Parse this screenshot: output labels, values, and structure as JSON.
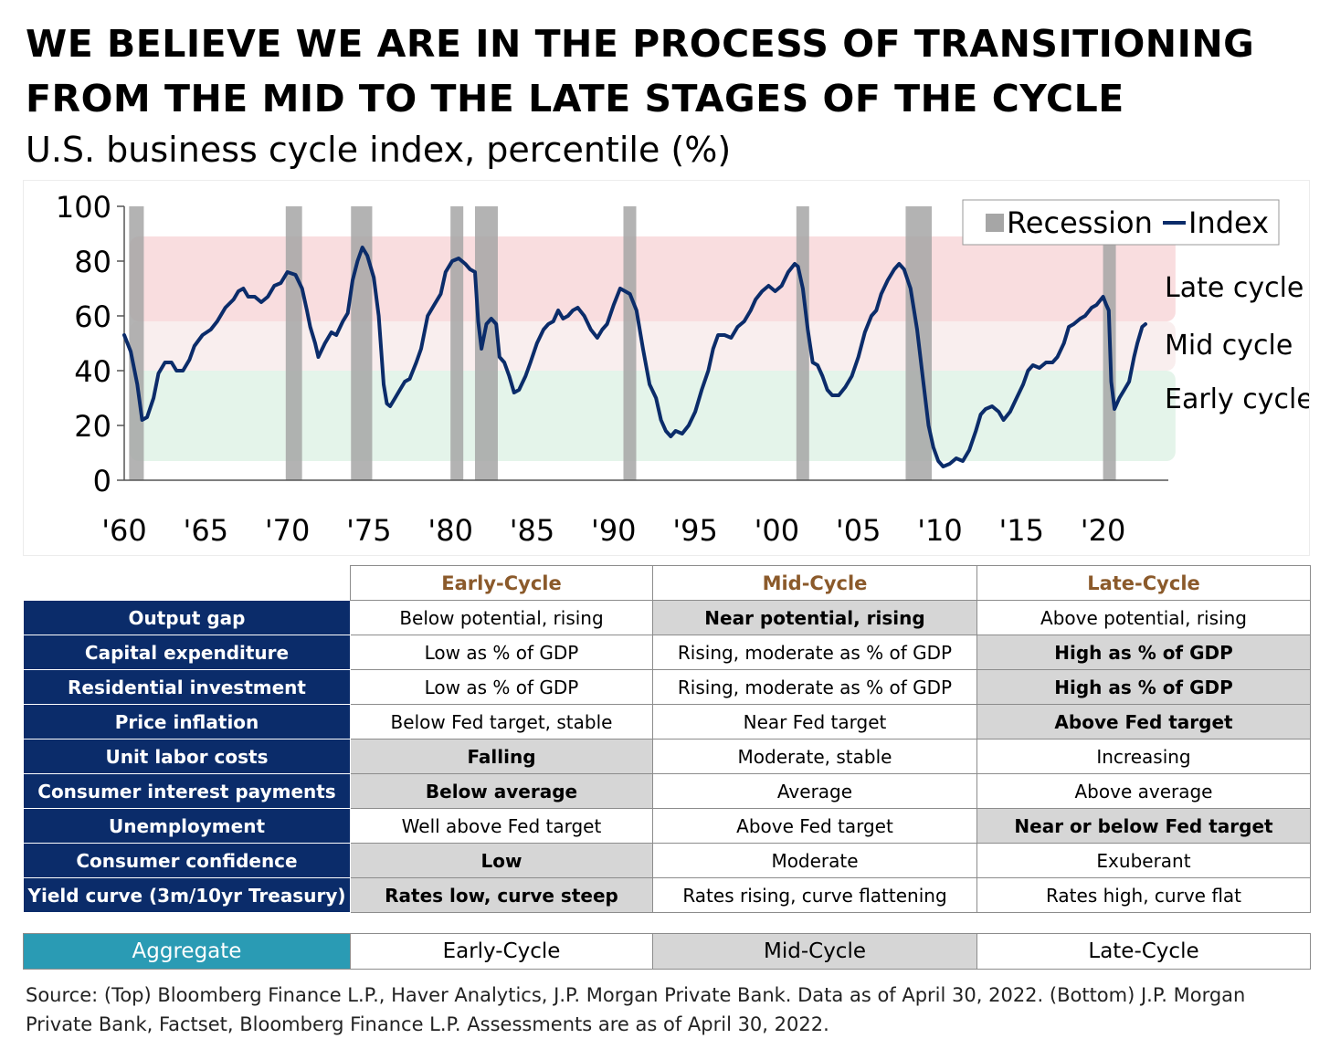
{
  "header": {
    "title": "WE BELIEVE WE ARE IN THE PROCESS OF TRANSITIONING FROM THE MID TO THE LATE STAGES OF THE CYCLE",
    "subtitle": "U.S. business cycle index, percentile (%)"
  },
  "colors": {
    "index_line": "#0b2c6a",
    "recession": "#a6a6a6",
    "late_band": "#f9dddf",
    "mid_band": "#f9eeee",
    "early_band": "#e4f4ea",
    "row_label_bg": "#0b2c6a",
    "aggregate_bg": "#2a9bb4",
    "highlight_bg": "#d6d6d6",
    "header_text": "#8b5a2b"
  },
  "chart_data": {
    "type": "line",
    "ylim": [
      0,
      100
    ],
    "xlim": [
      1960,
      2024
    ],
    "y_ticks": [
      0,
      20,
      40,
      60,
      80,
      100
    ],
    "x_ticks": [
      {
        "value": 1960,
        "label": "'60"
      },
      {
        "value": 1965,
        "label": "'65"
      },
      {
        "value": 1970,
        "label": "'70"
      },
      {
        "value": 1975,
        "label": "'75"
      },
      {
        "value": 1980,
        "label": "'80"
      },
      {
        "value": 1985,
        "label": "'85"
      },
      {
        "value": 1990,
        "label": "'90"
      },
      {
        "value": 1995,
        "label": "'95"
      },
      {
        "value": 2000,
        "label": "'00"
      },
      {
        "value": 2005,
        "label": "'05"
      },
      {
        "value": 2010,
        "label": "'10"
      },
      {
        "value": 2015,
        "label": "'15"
      },
      {
        "value": 2020,
        "label": "'20"
      }
    ],
    "bands": [
      {
        "label": "Late cycle",
        "from": 58,
        "to": 89,
        "color": "#f9dddf"
      },
      {
        "label": "Mid cycle",
        "from": 40,
        "to": 58,
        "color": "#f9eeee"
      },
      {
        "label": "Early cycle",
        "from": 7,
        "to": 40,
        "color": "#e4f4ea"
      }
    ],
    "legend": {
      "placement": "top-right",
      "entries": [
        "Recession",
        "Index"
      ]
    },
    "recessions": [
      [
        1960.3,
        1961.2
      ],
      [
        1969.9,
        1970.9
      ],
      [
        1973.9,
        1975.2
      ],
      [
        1980.0,
        1980.6
      ],
      [
        1981.5,
        1982.9
      ],
      [
        1990.6,
        1991.2
      ],
      [
        2001.2,
        2001.9
      ],
      [
        2007.9,
        2009.5
      ],
      [
        2020.0,
        2020.5
      ]
    ],
    "series": [
      {
        "name": "Index",
        "points": [
          [
            1960.0,
            53
          ],
          [
            1960.4,
            47
          ],
          [
            1960.8,
            35
          ],
          [
            1961.1,
            22
          ],
          [
            1961.4,
            23
          ],
          [
            1961.8,
            30
          ],
          [
            1962.1,
            39
          ],
          [
            1962.5,
            43
          ],
          [
            1962.9,
            43
          ],
          [
            1963.2,
            40
          ],
          [
            1963.6,
            40
          ],
          [
            1964.0,
            44
          ],
          [
            1964.3,
            49
          ],
          [
            1964.8,
            53
          ],
          [
            1965.3,
            55
          ],
          [
            1965.7,
            58
          ],
          [
            1966.2,
            63
          ],
          [
            1966.7,
            66
          ],
          [
            1967.0,
            69
          ],
          [
            1967.3,
            70
          ],
          [
            1967.6,
            67
          ],
          [
            1968.0,
            67
          ],
          [
            1968.4,
            65
          ],
          [
            1968.8,
            67
          ],
          [
            1969.2,
            71
          ],
          [
            1969.6,
            72
          ],
          [
            1970.0,
            76
          ],
          [
            1970.5,
            75
          ],
          [
            1970.9,
            70
          ],
          [
            1971.2,
            62
          ],
          [
            1971.4,
            56
          ],
          [
            1971.7,
            50
          ],
          [
            1971.9,
            45
          ],
          [
            1972.3,
            50
          ],
          [
            1972.7,
            54
          ],
          [
            1973.0,
            53
          ],
          [
            1973.4,
            58
          ],
          [
            1973.7,
            61
          ],
          [
            1974.0,
            73
          ],
          [
            1974.3,
            80
          ],
          [
            1974.6,
            85
          ],
          [
            1974.9,
            82
          ],
          [
            1975.3,
            74
          ],
          [
            1975.6,
            60
          ],
          [
            1975.9,
            35
          ],
          [
            1976.1,
            28
          ],
          [
            1976.3,
            27
          ],
          [
            1976.6,
            30
          ],
          [
            1976.9,
            33
          ],
          [
            1977.2,
            36
          ],
          [
            1977.5,
            37
          ],
          [
            1977.9,
            43
          ],
          [
            1978.2,
            48
          ],
          [
            1978.6,
            60
          ],
          [
            1979.0,
            64
          ],
          [
            1979.4,
            68
          ],
          [
            1979.7,
            76
          ],
          [
            1980.1,
            80
          ],
          [
            1980.5,
            81
          ],
          [
            1980.9,
            79
          ],
          [
            1981.2,
            77
          ],
          [
            1981.5,
            76
          ],
          [
            1981.7,
            58
          ],
          [
            1981.9,
            48
          ],
          [
            1982.2,
            57
          ],
          [
            1982.5,
            59
          ],
          [
            1982.8,
            57
          ],
          [
            1983.0,
            45
          ],
          [
            1983.3,
            43
          ],
          [
            1983.6,
            38
          ],
          [
            1983.9,
            32
          ],
          [
            1984.2,
            33
          ],
          [
            1984.6,
            38
          ],
          [
            1984.9,
            43
          ],
          [
            1985.3,
            50
          ],
          [
            1985.7,
            55
          ],
          [
            1986.0,
            57
          ],
          [
            1986.3,
            58
          ],
          [
            1986.6,
            62
          ],
          [
            1986.9,
            59
          ],
          [
            1987.2,
            60
          ],
          [
            1987.5,
            62
          ],
          [
            1987.8,
            63
          ],
          [
            1988.2,
            60
          ],
          [
            1988.6,
            55
          ],
          [
            1989.0,
            52
          ],
          [
            1989.3,
            55
          ],
          [
            1989.6,
            57
          ],
          [
            1990.0,
            64
          ],
          [
            1990.4,
            70
          ],
          [
            1990.7,
            69
          ],
          [
            1991.0,
            68
          ],
          [
            1991.4,
            62
          ],
          [
            1991.8,
            48
          ],
          [
            1992.2,
            35
          ],
          [
            1992.6,
            30
          ],
          [
            1992.9,
            22
          ],
          [
            1993.2,
            18
          ],
          [
            1993.5,
            16
          ],
          [
            1993.8,
            18
          ],
          [
            1994.2,
            17
          ],
          [
            1994.6,
            20
          ],
          [
            1995.0,
            25
          ],
          [
            1995.4,
            33
          ],
          [
            1995.8,
            40
          ],
          [
            1996.1,
            48
          ],
          [
            1996.4,
            53
          ],
          [
            1996.8,
            53
          ],
          [
            1997.2,
            52
          ],
          [
            1997.6,
            56
          ],
          [
            1998.0,
            58
          ],
          [
            1998.4,
            62
          ],
          [
            1998.7,
            66
          ],
          [
            1999.1,
            69
          ],
          [
            1999.5,
            71
          ],
          [
            1999.9,
            69
          ],
          [
            2000.3,
            71
          ],
          [
            2000.7,
            76
          ],
          [
            2001.1,
            79
          ],
          [
            2001.3,
            78
          ],
          [
            2001.6,
            70
          ],
          [
            2001.9,
            55
          ],
          [
            2002.2,
            43
          ],
          [
            2002.5,
            42
          ],
          [
            2002.8,
            38
          ],
          [
            2003.1,
            33
          ],
          [
            2003.4,
            31
          ],
          [
            2003.8,
            31
          ],
          [
            2004.2,
            34
          ],
          [
            2004.6,
            38
          ],
          [
            2005.0,
            45
          ],
          [
            2005.4,
            54
          ],
          [
            2005.8,
            60
          ],
          [
            2006.1,
            62
          ],
          [
            2006.4,
            68
          ],
          [
            2006.8,
            73
          ],
          [
            2007.2,
            77
          ],
          [
            2007.5,
            79
          ],
          [
            2007.8,
            77
          ],
          [
            2008.2,
            70
          ],
          [
            2008.6,
            55
          ],
          [
            2009.0,
            35
          ],
          [
            2009.3,
            20
          ],
          [
            2009.6,
            12
          ],
          [
            2009.9,
            7
          ],
          [
            2010.2,
            5
          ],
          [
            2010.6,
            6
          ],
          [
            2011.0,
            8
          ],
          [
            2011.4,
            7
          ],
          [
            2011.8,
            11
          ],
          [
            2012.2,
            18
          ],
          [
            2012.5,
            24
          ],
          [
            2012.8,
            26
          ],
          [
            2013.2,
            27
          ],
          [
            2013.6,
            25
          ],
          [
            2013.9,
            22
          ],
          [
            2014.3,
            25
          ],
          [
            2014.7,
            30
          ],
          [
            2015.1,
            35
          ],
          [
            2015.4,
            40
          ],
          [
            2015.7,
            42
          ],
          [
            2016.1,
            41
          ],
          [
            2016.5,
            43
          ],
          [
            2016.9,
            43
          ],
          [
            2017.2,
            45
          ],
          [
            2017.6,
            50
          ],
          [
            2017.9,
            56
          ],
          [
            2018.2,
            57
          ],
          [
            2018.6,
            59
          ],
          [
            2018.9,
            60
          ],
          [
            2019.3,
            63
          ],
          [
            2019.6,
            64
          ],
          [
            2020.0,
            67
          ],
          [
            2020.2,
            64
          ],
          [
            2020.35,
            62
          ],
          [
            2020.5,
            36
          ],
          [
            2020.7,
            26
          ],
          [
            2021.0,
            30
          ],
          [
            2021.3,
            33
          ],
          [
            2021.6,
            36
          ],
          [
            2021.9,
            45
          ],
          [
            2022.1,
            50
          ],
          [
            2022.4,
            56
          ],
          [
            2022.6,
            57
          ]
        ]
      }
    ]
  },
  "table": {
    "columns": [
      "Early-Cycle",
      "Mid-Cycle",
      "Late-Cycle"
    ],
    "rows": [
      {
        "label": "Output gap",
        "cells": [
          "Below potential, rising",
          "Near potential, rising",
          "Above potential, rising"
        ],
        "highlight": 1
      },
      {
        "label": "Capital expenditure",
        "cells": [
          "Low as % of GDP",
          "Rising, moderate as % of GDP",
          "High as % of GDP"
        ],
        "highlight": 2
      },
      {
        "label": "Residential investment",
        "cells": [
          "Low as % of GDP",
          "Rising, moderate as % of GDP",
          "High as % of GDP"
        ],
        "highlight": 2
      },
      {
        "label": "Price inflation",
        "cells": [
          "Below Fed target, stable",
          "Near Fed target",
          "Above Fed target"
        ],
        "highlight": 2
      },
      {
        "label": "Unit labor costs",
        "cells": [
          "Falling",
          "Moderate, stable",
          "Increasing"
        ],
        "highlight": 0
      },
      {
        "label": "Consumer interest payments",
        "cells": [
          "Below average",
          "Average",
          "Above average"
        ],
        "highlight": 0
      },
      {
        "label": "Unemployment",
        "cells": [
          "Well above Fed target",
          "Above Fed target",
          "Near or below Fed target"
        ],
        "highlight": 2
      },
      {
        "label": "Consumer confidence",
        "cells": [
          "Low",
          "Moderate",
          "Exuberant"
        ],
        "highlight": 0
      },
      {
        "label": "Yield curve (3m/10yr Treasury)",
        "cells": [
          "Rates low, curve steep",
          "Rates rising, curve flattening",
          "Rates high, curve flat"
        ],
        "highlight": 0
      }
    ]
  },
  "aggregate": {
    "label": "Aggregate",
    "cells": [
      "Early-Cycle",
      "Mid-Cycle",
      "Late-Cycle"
    ],
    "highlight": 1
  },
  "source": "Source: (Top) Bloomberg Finance L.P., Haver Analytics, J.P. Morgan Private Bank. Data as of April 30, 2022. (Bottom) J.P. Morgan Private Bank, Factset, Bloomberg Finance L.P. Assessments are as of April 30, 2022."
}
